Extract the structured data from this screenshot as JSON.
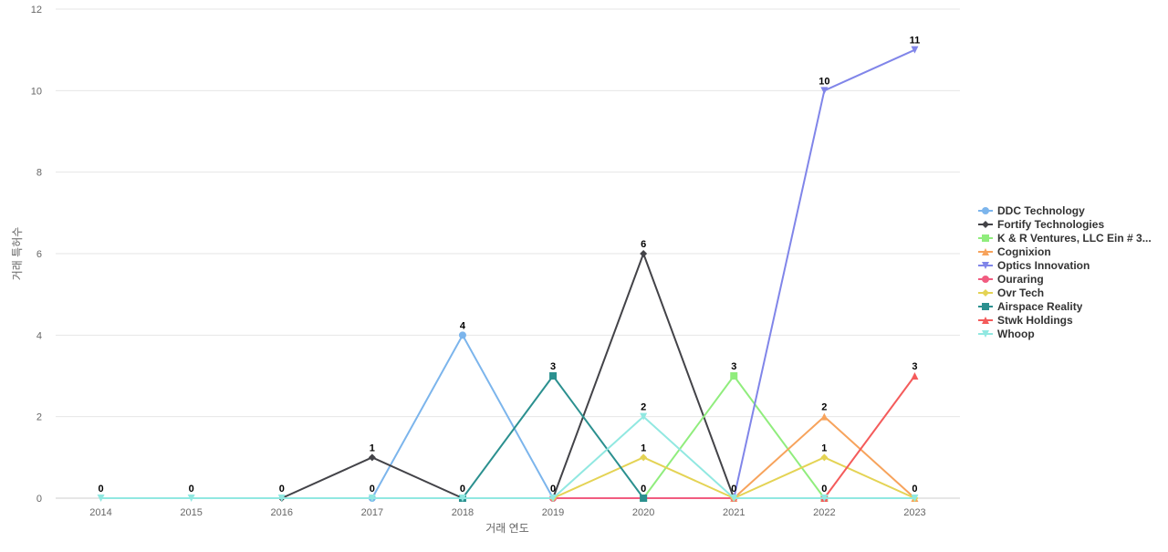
{
  "chart_data": {
    "type": "line",
    "title": "",
    "xlabel": "거래 연도",
    "ylabel": "거래 특허수",
    "x": [
      "2014",
      "2015",
      "2016",
      "2017",
      "2018",
      "2019",
      "2020",
      "2021",
      "2022",
      "2023"
    ],
    "ylim": [
      0,
      12
    ],
    "yticks": [
      "0",
      "2",
      "4",
      "6",
      "8",
      "10",
      "12"
    ],
    "grid": true,
    "legend_position": "right",
    "series": [
      {
        "name": "DDC Technology",
        "color": "#7cb5ec",
        "marker": "circle",
        "values": [
          null,
          null,
          null,
          0,
          4,
          0,
          null,
          null,
          null,
          null
        ]
      },
      {
        "name": "Fortify Technologies",
        "color": "#434348",
        "marker": "diamond",
        "values": [
          null,
          null,
          0,
          1,
          0,
          0,
          6,
          0,
          null,
          null
        ]
      },
      {
        "name": "K & R Ventures, LLC Ein # 3...",
        "color": "#90ed7d",
        "marker": "square",
        "values": [
          null,
          null,
          null,
          null,
          null,
          null,
          0,
          3,
          0,
          null
        ]
      },
      {
        "name": "Cognixion",
        "color": "#f7a35c",
        "marker": "triangle",
        "values": [
          null,
          null,
          null,
          null,
          null,
          null,
          null,
          0,
          2,
          0
        ]
      },
      {
        "name": "Optics Innovation",
        "color": "#8085e9",
        "marker": "triangle-down",
        "values": [
          null,
          null,
          null,
          null,
          null,
          null,
          null,
          0,
          10,
          11
        ]
      },
      {
        "name": "Ouraring",
        "color": "#f15c80",
        "marker": "circle",
        "values": [
          null,
          null,
          null,
          null,
          null,
          0,
          0,
          0,
          0,
          null
        ]
      },
      {
        "name": "Ovr Tech",
        "color": "#e4d354",
        "marker": "diamond",
        "values": [
          null,
          null,
          null,
          null,
          null,
          0,
          1,
          0,
          1,
          0
        ]
      },
      {
        "name": "Airspace Reality",
        "color": "#2b908f",
        "marker": "square",
        "values": [
          null,
          null,
          null,
          null,
          0,
          3,
          0,
          null,
          null,
          null
        ]
      },
      {
        "name": "Stwk Holdings",
        "color": "#f45b5b",
        "marker": "triangle",
        "values": [
          null,
          null,
          null,
          null,
          null,
          null,
          null,
          null,
          0,
          3
        ]
      },
      {
        "name": "Whoop",
        "color": "#91e8e1",
        "marker": "triangle-down",
        "values": [
          0,
          0,
          0,
          0,
          0,
          0,
          2,
          0,
          0,
          0
        ]
      }
    ],
    "data_labels": [
      {
        "year": "2014",
        "value": 0
      },
      {
        "year": "2015",
        "value": 0
      },
      {
        "year": "2016",
        "value": 0
      },
      {
        "year": "2017",
        "value": 1
      },
      {
        "year": "2017",
        "value": 0
      },
      {
        "year": "2018",
        "value": 4
      },
      {
        "year": "2018",
        "value": 0
      },
      {
        "year": "2019",
        "value": 3
      },
      {
        "year": "2019",
        "value": 0
      },
      {
        "year": "2020",
        "value": 6
      },
      {
        "year": "2020",
        "value": 2
      },
      {
        "year": "2020",
        "value": 1
      },
      {
        "year": "2020",
        "value": 0
      },
      {
        "year": "2021",
        "value": 3
      },
      {
        "year": "2021",
        "value": 0
      },
      {
        "year": "2022",
        "value": 10
      },
      {
        "year": "2022",
        "value": 2
      },
      {
        "year": "2022",
        "value": 1
      },
      {
        "year": "2022",
        "value": 0
      },
      {
        "year": "2023",
        "value": 11
      },
      {
        "year": "2023",
        "value": 3
      },
      {
        "year": "2023",
        "value": 0
      }
    ]
  }
}
